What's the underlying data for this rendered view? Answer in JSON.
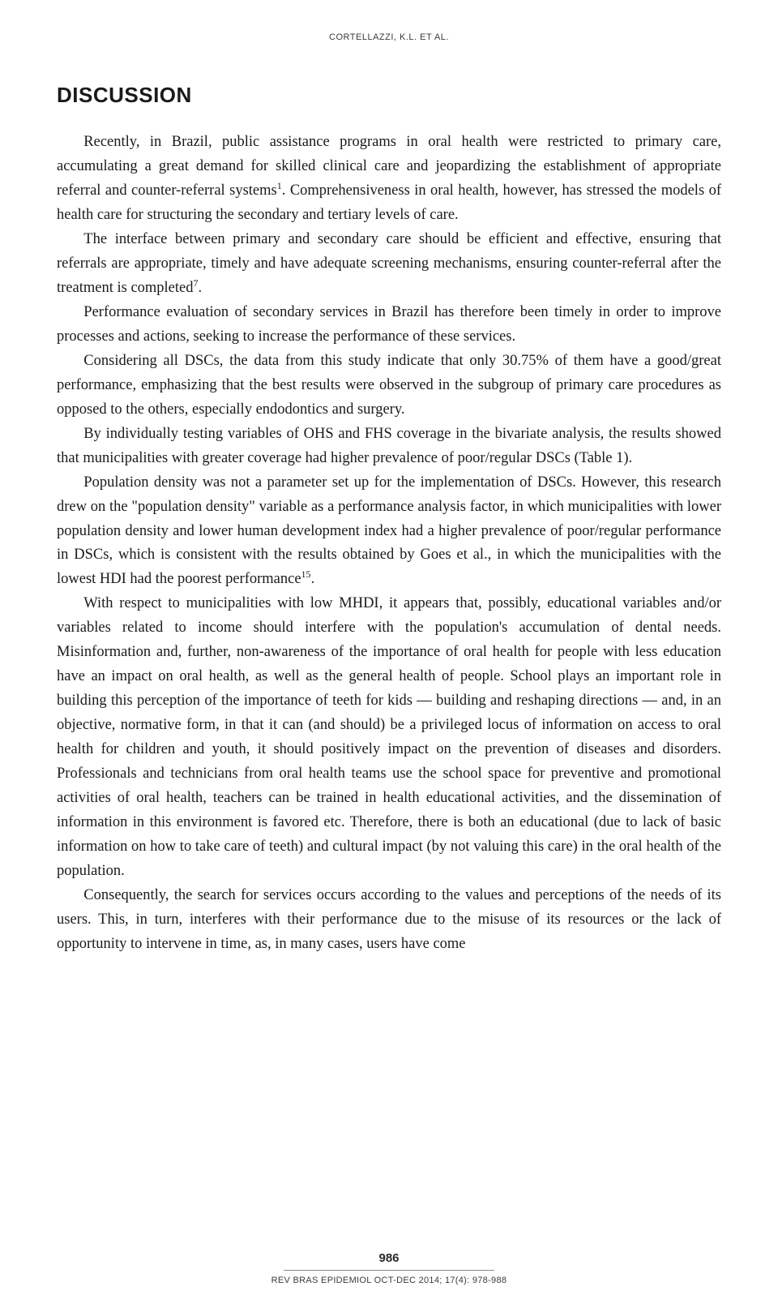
{
  "runningHead": "CORTELLAZZI, K.L. ET AL.",
  "section": {
    "heading": "DISCUSSION"
  },
  "paragraphs": {
    "p1a": "Recently, in Brazil, public assistance programs in oral health were restricted to primary care, accumulating a great demand for skilled clinical care and jeopardizing the establishment of appropriate referral and counter-referral systems",
    "p1sup": "1",
    "p1b": ". Comprehensiveness in oral health, however, has stressed the models of health care for structuring the secondary and tertiary levels of care.",
    "p2a": "The interface between primary and secondary care should be efficient and effective, ensuring that referrals are appropriate, timely and have adequate screening mechanisms, ensuring counter-referral after the treatment is completed",
    "p2sup": "7",
    "p2b": ".",
    "p3": "Performance evaluation of secondary services in Brazil has therefore been timely in order to improve processes and actions, seeking to increase the performance of these services.",
    "p4": "Considering all DSCs, the data from this study indicate that only 30.75% of them have a good/great performance, emphasizing that the best results were observed in the subgroup of primary care procedures as opposed to the others, especially endodontics and surgery.",
    "p5": "By individually testing variables of OHS and FHS coverage in the bivariate analysis, the results showed that municipalities with greater coverage had higher prevalence of poor/regular DSCs (Table 1).",
    "p6a": "Population density was not a parameter set up for the implementation of DSCs. However, this research drew on the \"population density\" variable as a performance analysis factor, in which municipalities with lower population density and lower human development index had a higher prevalence of poor/regular performance in DSCs, which is consistent with the results obtained by Goes et al., in which the municipalities with the lowest HDI had the poorest performance",
    "p6sup": "15",
    "p6b": ".",
    "p7": "With respect to municipalities with low MHDI, it appears that, possibly, educational variables and/or variables related to income should interfere with the population's accumulation of dental needs. Misinformation and, further, non-awareness of the importance of oral health for people with less education have an impact on oral health, as well as the general health of people. School plays an important role in building this perception of the importance of teeth for kids — building and reshaping directions — and, in an objective, normative form, in that it can (and should) be a privileged locus of information on access to oral health for children and youth, it should positively impact on the prevention of diseases and disorders. Professionals and technicians from oral health teams use the school space for preventive and promotional activities of oral health, teachers can be trained in health educational activities, and the dissemination of information in this environment is favored etc. Therefore, there is both an educational (due to lack of basic information on how to take care of teeth) and cultural impact (by not valuing this care) in the oral health of the population.",
    "p8": "Consequently, the search for services occurs according to the values and perceptions of the needs of its users. This, in turn, interferes with their performance due to the misuse of its resources or the lack of opportunity to intervene in time, as, in many cases, users have come"
  },
  "footer": {
    "pageNumber": "986",
    "journal": "REV BRAS EPIDEMIOL OCT-DEC 2014; 17(4): 978-988"
  },
  "style": {
    "bodyFontSize": 18.5,
    "lineHeight": 1.62,
    "textColor": "#1a1a1a",
    "background": "#ffffff",
    "headingFontSize": 26,
    "runningHeadFontSize": 11,
    "footerFontSize": 11,
    "pageNumFontSize": 15,
    "pageWidth": 960,
    "pageHeight": 1613,
    "indentEm": 1.8
  }
}
